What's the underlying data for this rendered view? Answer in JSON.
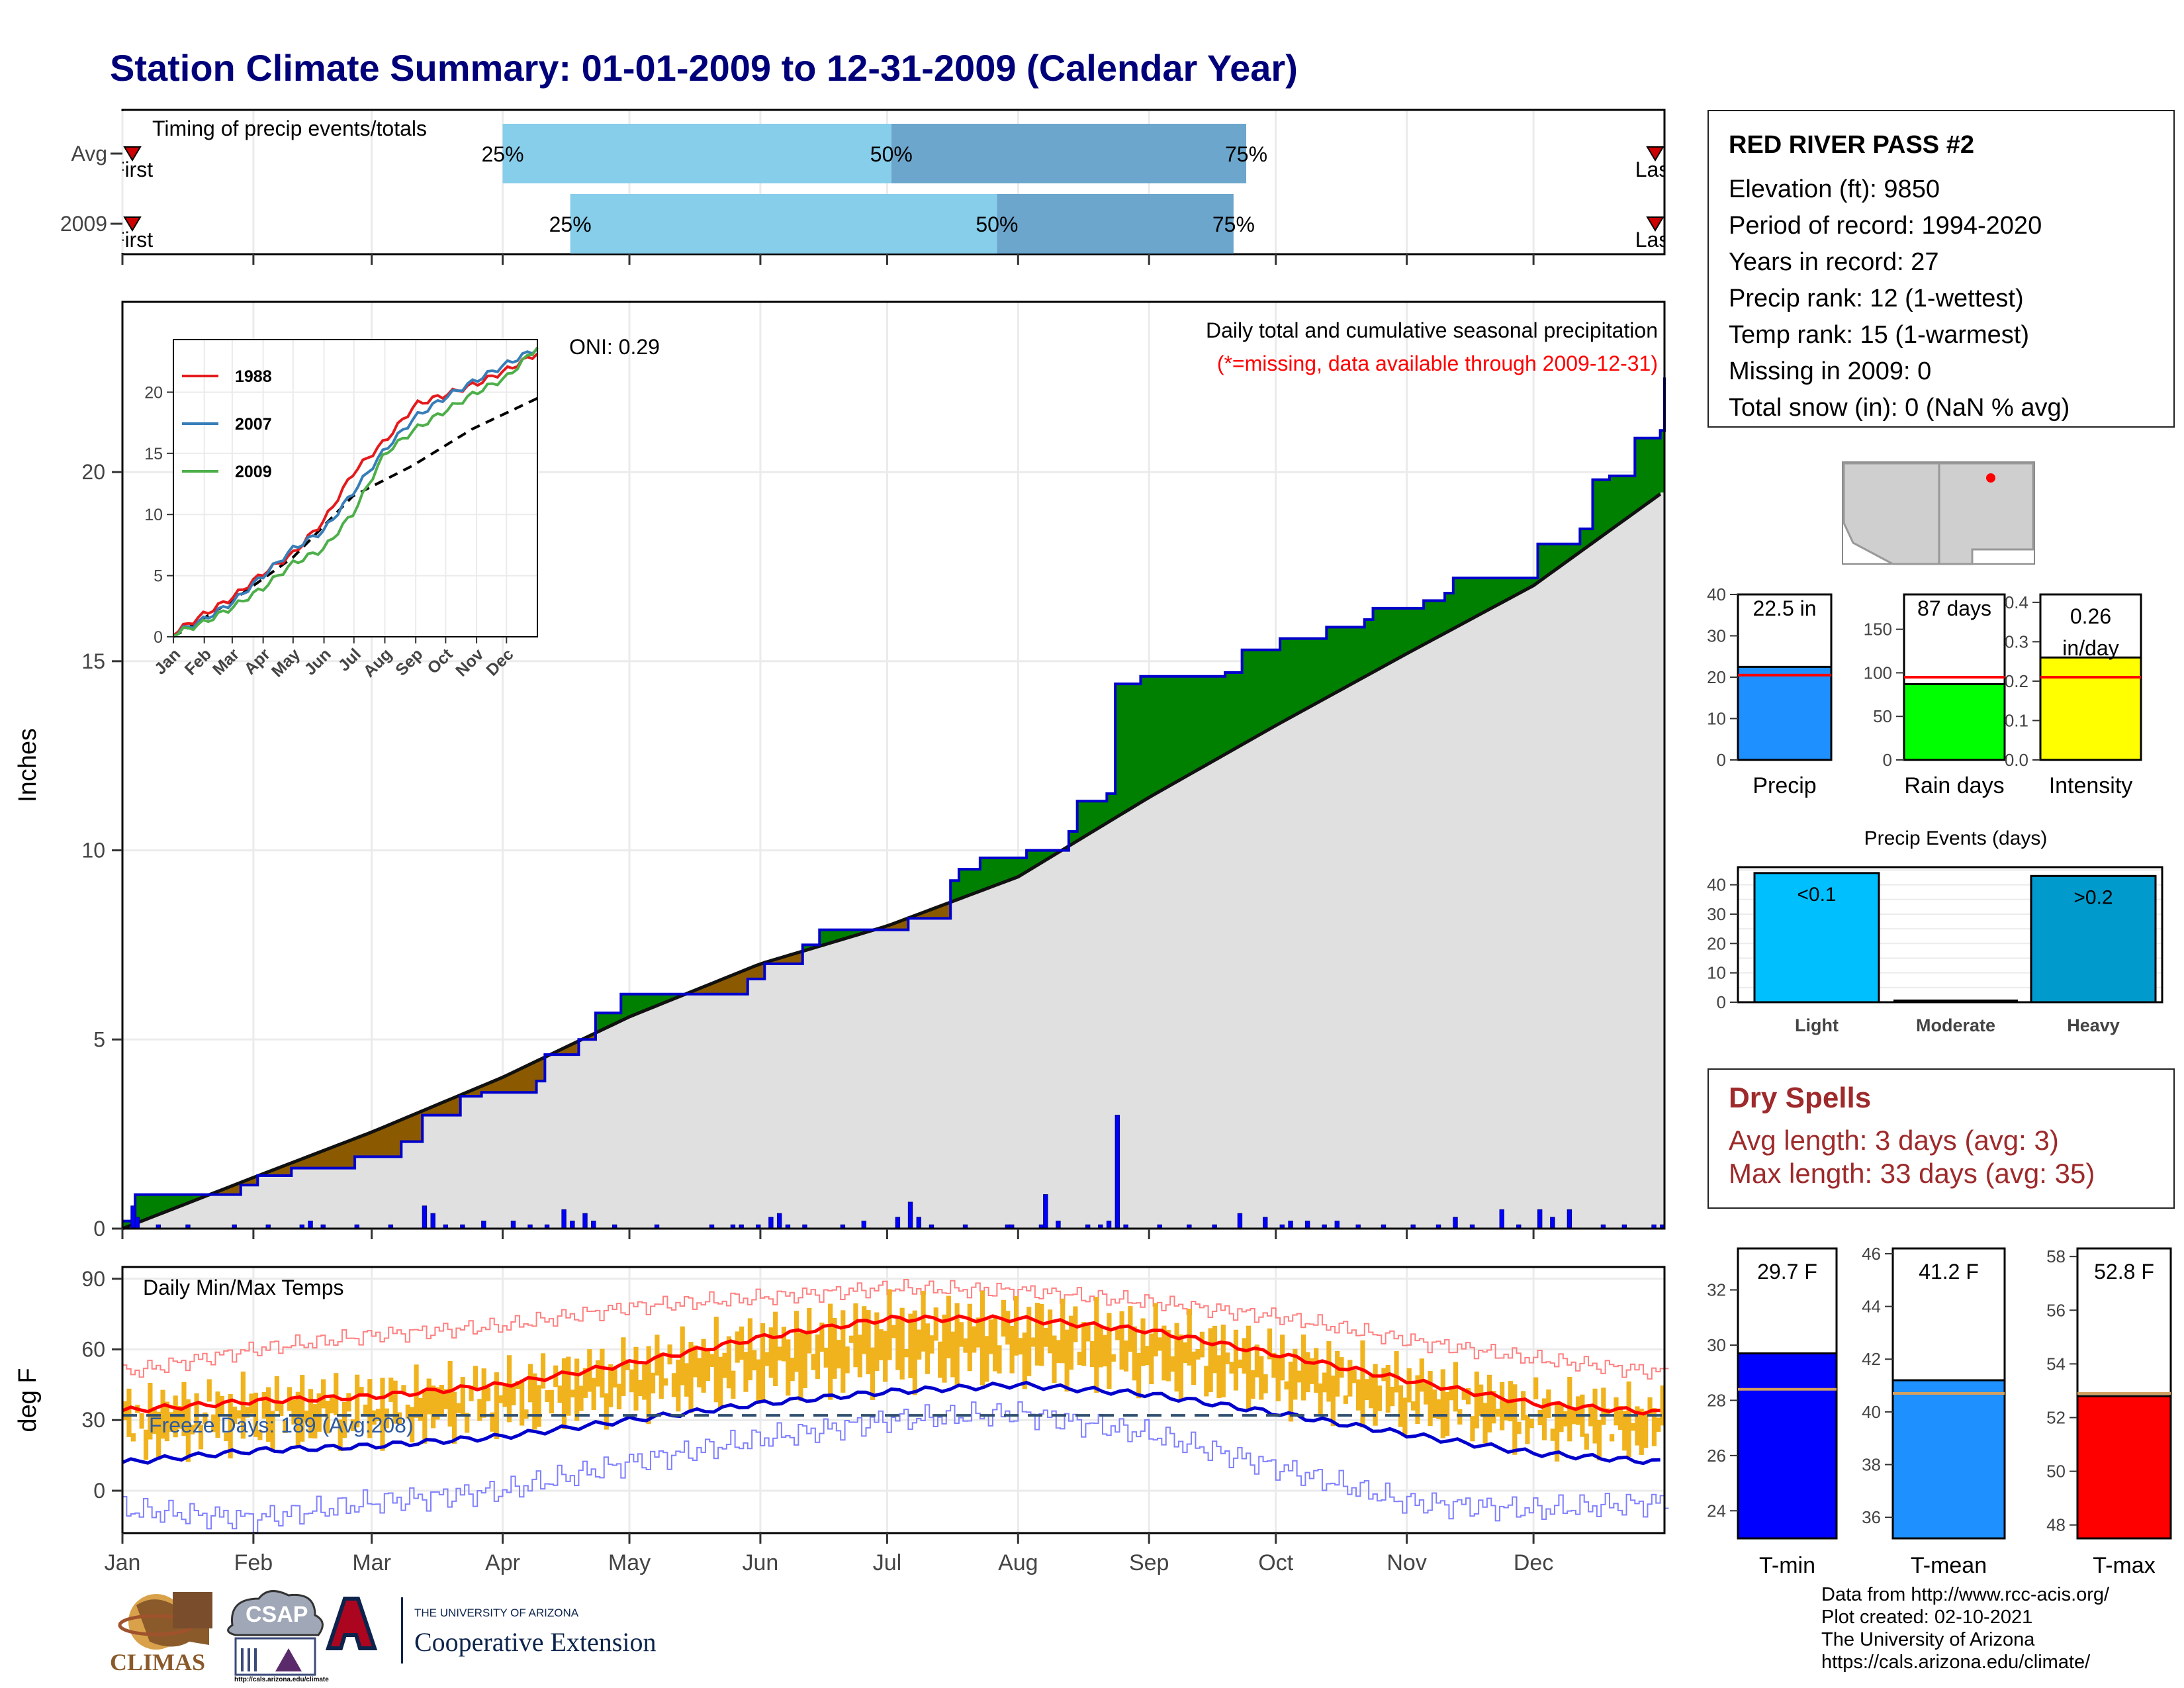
{
  "title": "Station Climate Summary: 01-01-2009 to 12-31-2009 (Calendar Year)",
  "months": [
    "Jan",
    "Feb",
    "Mar",
    "Apr",
    "May",
    "Jun",
    "Jul",
    "Aug",
    "Sep",
    "Oct",
    "Nov",
    "Dec"
  ],
  "timing_panel": {
    "title": "Timing of precip events/totals",
    "rows": [
      {
        "label": "Avg",
        "first_label": "First",
        "last_label": "Last",
        "p25_doy": 90,
        "p50_doy": 182,
        "p75_doy": 266
      },
      {
        "label": "2009",
        "first_label": "First",
        "last_label": "Last",
        "p25_doy": 106,
        "p50_doy": 207,
        "p75_doy": 263
      }
    ],
    "percent_labels": [
      "25%",
      "50%",
      "75%"
    ],
    "colors": {
      "light": "#87ceeb",
      "dark": "#6ca6cd",
      "marker": "#cc0000"
    }
  },
  "precip_panel": {
    "ylabel": "Inches",
    "yticks": [
      0,
      5,
      10,
      15,
      20
    ],
    "ylim": [
      0,
      24.5
    ],
    "annotation": "Daily total and cumulative seasonal precipitation",
    "missing_note": "(*=missing, data available through 2009-12-31)",
    "oni": "ONI: 0.29",
    "colors": {
      "above": "#008000",
      "below": "#8b5a00",
      "normal_fill": "#e0e0e0",
      "observed_line": "#0000cc",
      "daily_bar": "#0000ff"
    },
    "chart_data": {
      "type": "area",
      "observed_cumulative": [
        [
          0,
          0.2
        ],
        [
          3,
          0.9
        ],
        [
          28,
          1.15
        ],
        [
          32,
          1.4
        ],
        [
          40,
          1.6
        ],
        [
          55,
          1.9
        ],
        [
          66,
          2.3
        ],
        [
          70,
          2.3
        ],
        [
          71,
          3.0
        ],
        [
          80,
          3.5
        ],
        [
          85,
          3.6
        ],
        [
          98,
          3.9
        ],
        [
          100,
          4.6
        ],
        [
          108,
          5.0
        ],
        [
          112,
          5.7
        ],
        [
          118,
          6.2
        ],
        [
          135,
          6.2
        ],
        [
          146,
          6.2
        ],
        [
          148,
          6.6
        ],
        [
          152,
          7.0
        ],
        [
          161,
          7.5
        ],
        [
          165,
          7.9
        ],
        [
          186,
          8.2
        ],
        [
          196,
          9.2
        ],
        [
          198,
          9.5
        ],
        [
          203,
          9.8
        ],
        [
          214,
          10.0
        ],
        [
          224,
          10.5
        ],
        [
          226,
          11.3
        ],
        [
          233,
          11.5
        ],
        [
          235,
          14.4
        ],
        [
          241,
          14.6
        ],
        [
          261,
          14.7
        ],
        [
          265,
          15.3
        ],
        [
          274,
          15.6
        ],
        [
          285,
          15.9
        ],
        [
          294,
          16.1
        ],
        [
          296,
          16.4
        ],
        [
          308,
          16.6
        ],
        [
          313,
          16.8
        ],
        [
          315,
          17.2
        ],
        [
          335,
          18.1
        ],
        [
          345,
          18.5
        ],
        [
          348,
          19.8
        ],
        [
          352,
          19.9
        ],
        [
          358,
          20.9
        ],
        [
          364,
          21.1
        ],
        [
          365,
          22.5
        ]
      ],
      "normal_cumulative": [
        [
          0,
          0
        ],
        [
          31,
          1.35
        ],
        [
          59,
          2.55
        ],
        [
          90,
          4.0
        ],
        [
          120,
          5.6
        ],
        [
          151,
          7.0
        ],
        [
          181,
          8.0
        ],
        [
          212,
          9.3
        ],
        [
          243,
          11.4
        ],
        [
          273,
          13.3
        ],
        [
          304,
          15.2
        ],
        [
          334,
          17.0
        ],
        [
          365,
          19.5
        ]
      ],
      "daily_bars": [
        [
          2,
          0.6
        ],
        [
          3,
          0.3
        ],
        [
          8,
          0.1
        ],
        [
          15,
          0.1
        ],
        [
          26,
          0.1
        ],
        [
          34,
          0.1
        ],
        [
          42,
          0.1
        ],
        [
          44,
          0.2
        ],
        [
          47,
          0.1
        ],
        [
          55,
          0.1
        ],
        [
          63,
          0.1
        ],
        [
          71,
          0.6
        ],
        [
          73,
          0.4
        ],
        [
          76,
          0.1
        ],
        [
          80,
          0.1
        ],
        [
          85,
          0.2
        ],
        [
          92,
          0.2
        ],
        [
          96,
          0.1
        ],
        [
          100,
          0.1
        ],
        [
          104,
          0.5
        ],
        [
          106,
          0.2
        ],
        [
          109,
          0.4
        ],
        [
          111,
          0.2
        ],
        [
          116,
          0.1
        ],
        [
          126,
          0.1
        ],
        [
          139,
          0.1
        ],
        [
          144,
          0.1
        ],
        [
          146,
          0.1
        ],
        [
          150,
          0.1
        ],
        [
          153,
          0.3
        ],
        [
          155,
          0.4
        ],
        [
          157,
          0.1
        ],
        [
          161,
          0.1
        ],
        [
          170,
          0.1
        ],
        [
          175,
          0.2
        ],
        [
          183,
          0.3
        ],
        [
          186,
          0.7
        ],
        [
          188,
          0.3
        ],
        [
          191,
          0.1
        ],
        [
          199,
          0.1
        ],
        [
          209,
          0.1
        ],
        [
          210,
          0.1
        ],
        [
          217,
          0.1
        ],
        [
          218,
          0.9
        ],
        [
          221,
          0.2
        ],
        [
          228,
          0.1
        ],
        [
          231,
          0.1
        ],
        [
          233,
          0.2
        ],
        [
          235,
          3.0
        ],
        [
          237,
          0.1
        ],
        [
          245,
          0.1
        ],
        [
          252,
          0.1
        ],
        [
          258,
          0.1
        ],
        [
          264,
          0.4
        ],
        [
          270,
          0.3
        ],
        [
          274,
          0.1
        ],
        [
          276,
          0.2
        ],
        [
          280,
          0.2
        ],
        [
          284,
          0.1
        ],
        [
          287,
          0.2
        ],
        [
          292,
          0.1
        ],
        [
          298,
          0.1
        ],
        [
          305,
          0.1
        ],
        [
          311,
          0.1
        ],
        [
          315,
          0.3
        ],
        [
          319,
          0.1
        ],
        [
          326,
          0.5
        ],
        [
          330,
          0.1
        ],
        [
          335,
          0.5
        ],
        [
          338,
          0.3
        ],
        [
          342,
          0.5
        ],
        [
          350,
          0.1
        ],
        [
          355,
          0.1
        ],
        [
          362,
          0.1
        ],
        [
          364,
          0.1
        ]
      ]
    }
  },
  "inset": {
    "yticks": [
      0,
      5,
      10,
      15,
      20
    ],
    "series": [
      {
        "name": "1988",
        "color": "#e41a1c",
        "values": [
          [
            0,
            0.3
          ],
          [
            30,
            1.8
          ],
          [
            59,
            3.2
          ],
          [
            90,
            5.2
          ],
          [
            120,
            6.8
          ],
          [
            151,
            9.5
          ],
          [
            181,
            13.5
          ],
          [
            212,
            16.0
          ],
          [
            243,
            19.0
          ],
          [
            273,
            19.8
          ],
          [
            304,
            20.7
          ],
          [
            334,
            21.8
          ],
          [
            365,
            23.2
          ]
        ]
      },
      {
        "name": "2007",
        "color": "#377eb8",
        "values": [
          [
            0,
            0.2
          ],
          [
            30,
            1.4
          ],
          [
            59,
            2.8
          ],
          [
            90,
            5.0
          ],
          [
            120,
            7.2
          ],
          [
            151,
            8.7
          ],
          [
            181,
            11.9
          ],
          [
            212,
            15.3
          ],
          [
            243,
            18.0
          ],
          [
            273,
            19.6
          ],
          [
            304,
            21.0
          ],
          [
            334,
            22.3
          ],
          [
            365,
            23.6
          ]
        ]
      },
      {
        "name": "2009",
        "color": "#4daf4a",
        "values": [
          [
            0,
            0.2
          ],
          [
            30,
            1.15
          ],
          [
            59,
            2.4
          ],
          [
            90,
            4.0
          ],
          [
            120,
            6.0
          ],
          [
            151,
            7.2
          ],
          [
            181,
            10.2
          ],
          [
            212,
            15.0
          ],
          [
            243,
            17.0
          ],
          [
            273,
            18.5
          ],
          [
            304,
            20.0
          ],
          [
            334,
            21.2
          ],
          [
            365,
            23.7
          ]
        ]
      }
    ],
    "normal_line": [
      [
        0,
        0
      ],
      [
        60,
        3.0
      ],
      [
        120,
        6.5
      ],
      [
        180,
        11.5
      ],
      [
        240,
        14.0
      ],
      [
        300,
        17.0
      ],
      [
        365,
        19.5
      ]
    ]
  },
  "temp_panel": {
    "title": "Daily Min/Max Temps",
    "ylabel": "deg F",
    "yticks": [
      0,
      30,
      60,
      90
    ],
    "ylim": [
      -18,
      95
    ],
    "freeze_label": "Freeze Days: 189 (Avg:208)",
    "freeze_line": 32,
    "colors": {
      "range": "#f0b31e",
      "max_normal": "#ff0000",
      "min_normal": "#0000cc",
      "max_record": "#ff8080",
      "min_record": "#8080ff"
    },
    "normal_max": [
      [
        0,
        34
      ],
      [
        31,
        38
      ],
      [
        59,
        40
      ],
      [
        90,
        45
      ],
      [
        120,
        54
      ],
      [
        151,
        65
      ],
      [
        181,
        73
      ],
      [
        212,
        73
      ],
      [
        243,
        68
      ],
      [
        273,
        58
      ],
      [
        304,
        47
      ],
      [
        334,
        37
      ],
      [
        365,
        33
      ]
    ],
    "normal_min": [
      [
        0,
        12
      ],
      [
        31,
        17
      ],
      [
        59,
        19
      ],
      [
        90,
        23
      ],
      [
        120,
        30
      ],
      [
        151,
        37
      ],
      [
        181,
        42
      ],
      [
        212,
        45
      ],
      [
        243,
        41
      ],
      [
        273,
        33
      ],
      [
        304,
        24
      ],
      [
        334,
        16
      ],
      [
        365,
        12
      ]
    ],
    "record_max": [
      [
        0,
        50
      ],
      [
        31,
        60
      ],
      [
        59,
        66
      ],
      [
        90,
        70
      ],
      [
        120,
        78
      ],
      [
        151,
        82
      ],
      [
        181,
        86
      ],
      [
        212,
        85
      ],
      [
        243,
        80
      ],
      [
        273,
        74
      ],
      [
        304,
        64
      ],
      [
        334,
        56
      ],
      [
        365,
        50
      ]
    ],
    "record_min": [
      [
        0,
        -8
      ],
      [
        31,
        -12
      ],
      [
        59,
        -5
      ],
      [
        90,
        0
      ],
      [
        120,
        12
      ],
      [
        151,
        22
      ],
      [
        181,
        30
      ],
      [
        212,
        33
      ],
      [
        243,
        24
      ],
      [
        273,
        10
      ],
      [
        304,
        -5
      ],
      [
        334,
        -8
      ],
      [
        365,
        -5
      ]
    ]
  },
  "station": {
    "name": "RED RIVER PASS #2",
    "rows": [
      "Elevation (ft): 9850",
      "Period of record: 1994-2020",
      "Years in record: 27",
      "Precip rank: 12 (1-wettest)",
      "Temp rank: 15 (1-warmest)",
      "Missing in 2009: 0",
      "Total snow (in): 0 (NaN % avg)"
    ]
  },
  "precip_summary_bars": [
    {
      "label": "Precip",
      "value": 22.5,
      "value_label": "22.5 in",
      "avg": 20.5,
      "ymax": 40,
      "yticks": [
        "0",
        "10",
        "20",
        "30",
        "40"
      ],
      "color": "#1e90ff"
    },
    {
      "label": "Rain days",
      "value": 87,
      "value_label": "87 days",
      "avg": 95,
      "ymax": 190,
      "yticks": [
        "0",
        "50",
        "100",
        "150"
      ],
      "color": "#00ff00"
    },
    {
      "label": "Intensity",
      "value": 0.26,
      "value_label": "0.26 in/day",
      "avg": 0.21,
      "ymax": 0.42,
      "yticks": [
        "0.0",
        "0.1",
        "0.2",
        "0.3",
        "0.4"
      ],
      "color": "#ffff00"
    }
  ],
  "precip_events": {
    "title": "Precip Events (days)",
    "yticks": [
      "0",
      "10",
      "20",
      "30",
      "40"
    ],
    "ymax": 46,
    "bars": [
      {
        "label": "Light",
        "value": 44,
        "value_label": "<0.1",
        "color": "#00bfff"
      },
      {
        "label": "Moderate",
        "value": 0,
        "value_label": "",
        "color": "#00bfff"
      },
      {
        "label": "Heavy",
        "value": 43,
        "value_label": ">0.2",
        "color": "#009acd"
      }
    ]
  },
  "dry_spells": {
    "title": "Dry Spells",
    "avg_length": "Avg length: 3 days (avg: 3)",
    "max_length": "Max length: 33 days (avg: 35)"
  },
  "temp_summary_bars": [
    {
      "label": "T-min",
      "value": 29.7,
      "value_label": "29.7 F",
      "avg": 28.4,
      "ymin": 23,
      "ymax": 33.5,
      "yticks": [
        24,
        26,
        28,
        30,
        32
      ],
      "color": "#0000ff"
    },
    {
      "label": "T-mean",
      "value": 41.2,
      "value_label": "41.2 F",
      "avg": 40.7,
      "ymin": 35.2,
      "ymax": 46.2,
      "yticks": [
        36,
        38,
        40,
        42,
        44,
        46
      ],
      "color": "#1e90ff"
    },
    {
      "label": "T-max",
      "value": 52.8,
      "value_label": "52.8 F",
      "avg": 52.9,
      "ymin": 47.5,
      "ymax": 58.3,
      "yticks": [
        48,
        50,
        52,
        54,
        56,
        58
      ],
      "color": "#ff0000"
    }
  ],
  "credits": [
    "Data from http://www.rcc-acis.org/",
    "Plot created: 02-10-2021",
    "The University of Arizona",
    "https://cals.arizona.edu/climate/"
  ],
  "logos": {
    "climas": "CLIMAS",
    "csap": "CSAP",
    "csap_url": "http://cals.arizona.edu/climate",
    "ua_line1": "THE UNIVERSITY OF ARIZONA",
    "ua_line2": "Cooperative Extension"
  }
}
